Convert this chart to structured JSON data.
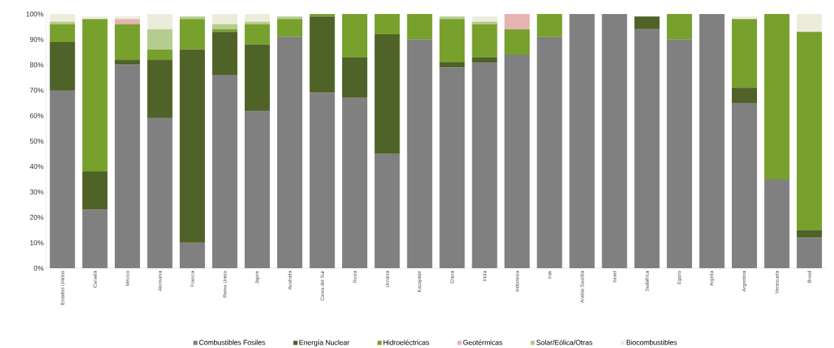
{
  "chart_data": {
    "type": "bar",
    "stacked": true,
    "legend": "bottom",
    "categories": [
      "Estados Unidos",
      "Canadá",
      "México",
      "Alemania",
      "Francia",
      "Reino Unido",
      "Japón",
      "Australia",
      "Corea del Sur",
      "Rusia",
      "Ucrania",
      "Kazajstán",
      "China",
      "India",
      "Indonesia",
      "Irak",
      "Arabia Saudita",
      "Israel",
      "Sudáfrica",
      "Egipto",
      "Argelia",
      "Argentina",
      "Venezuela",
      "Brasil"
    ],
    "ylim": [
      0,
      100
    ],
    "yticks": [
      {
        "value": 0,
        "label": "0%"
      },
      {
        "value": 10,
        "label": "10%"
      },
      {
        "value": 20,
        "label": "20%"
      },
      {
        "value": 30,
        "label": "30%"
      },
      {
        "value": 40,
        "label": "40%"
      },
      {
        "value": 50,
        "label": "50%"
      },
      {
        "value": 60,
        "label": "60%"
      },
      {
        "value": 70,
        "label": "70%"
      },
      {
        "value": 80,
        "label": "80%"
      },
      {
        "value": 90,
        "label": "90%"
      },
      {
        "value": 100,
        "label": "100%"
      }
    ],
    "series": [
      {
        "name": "Combustibles Fosiles",
        "color": "#808080",
        "values": [
          70,
          23,
          80,
          59,
          10,
          76,
          62,
          91,
          69,
          67,
          45,
          90,
          79,
          81,
          84,
          91,
          100,
          100,
          94,
          90,
          100,
          65,
          35,
          12
        ]
      },
      {
        "name": "Energía Nuclear",
        "color": "#4f6228",
        "values": [
          19,
          15,
          2,
          23,
          76,
          17,
          26,
          0,
          30,
          16,
          47,
          0,
          2,
          2,
          0,
          0,
          0,
          0,
          5,
          0,
          0,
          6,
          0,
          3
        ]
      },
      {
        "name": "Hidroeléctricas",
        "color": "#77a02c",
        "values": [
          7,
          60,
          14,
          4,
          12,
          1,
          8,
          7,
          1,
          17,
          8,
          10,
          17,
          13,
          10,
          9,
          0,
          0,
          0,
          10,
          0,
          27,
          65,
          78
        ]
      },
      {
        "name": "Geotérmicas",
        "color": "#e6b3b3",
        "values": [
          0,
          0,
          2,
          0,
          0,
          0,
          0,
          0,
          0,
          0,
          0,
          0,
          0,
          0,
          6,
          0,
          0,
          0,
          0,
          0,
          0,
          0,
          0,
          0
        ]
      },
      {
        "name": "Solar/Eólica/Otras",
        "color": "#b5cc8e",
        "values": [
          1,
          0,
          0,
          8,
          1,
          2,
          1,
          1,
          0,
          0,
          0,
          0,
          1,
          1,
          0,
          0,
          0,
          0,
          0,
          0,
          0,
          0,
          0,
          0
        ]
      },
      {
        "name": "Biocombustibles",
        "color": "#ececdc",
        "values": [
          3,
          1,
          1,
          6,
          0,
          4,
          3,
          0,
          0,
          0,
          0,
          0,
          0,
          2,
          0,
          0,
          0,
          0,
          0,
          0,
          0,
          1,
          0,
          7
        ]
      }
    ]
  }
}
